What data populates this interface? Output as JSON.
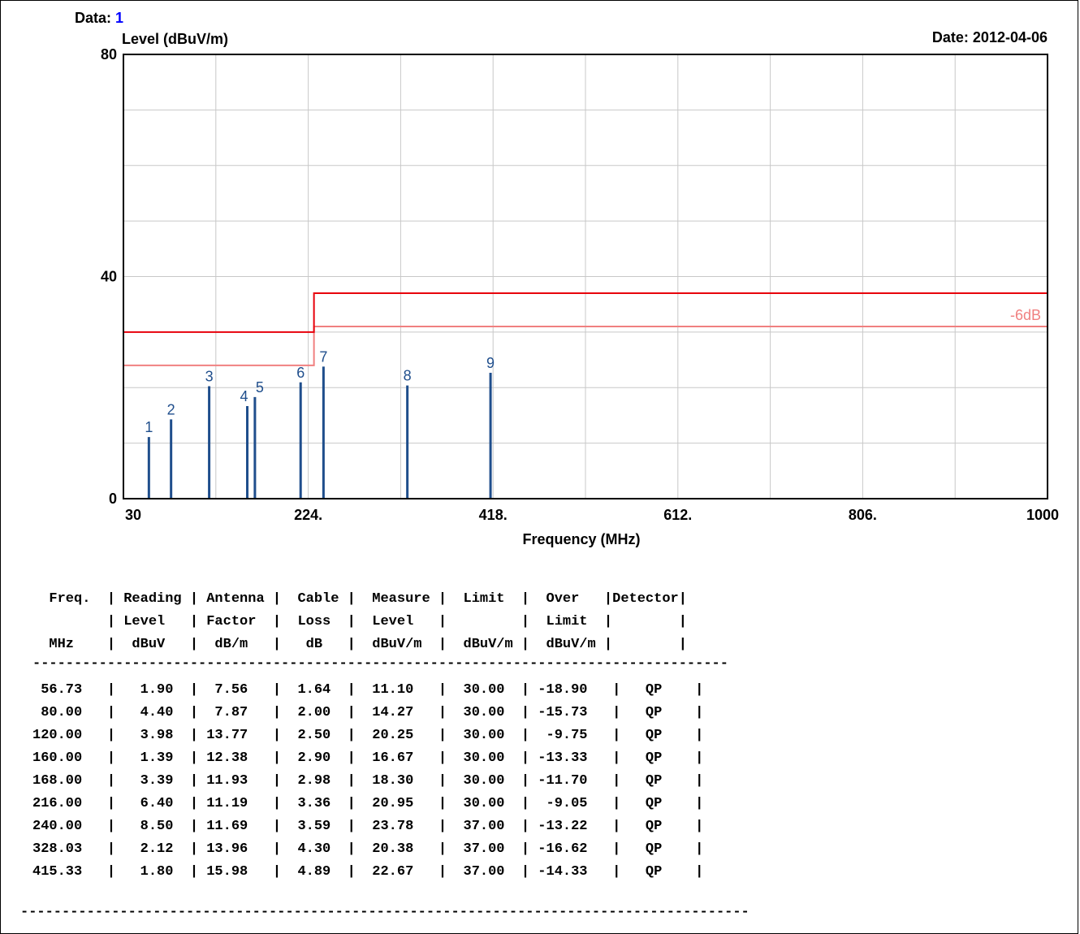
{
  "header": {
    "data_label": "Data:",
    "data_value": "1",
    "date": "Date: 2012-04-06"
  },
  "chart_data": {
    "type": "bar",
    "ylabel": "Level (dBuV/m)",
    "xlabel": "Frequency (MHz)",
    "xlim": [
      30,
      1000
    ],
    "ylim": [
      0,
      80
    ],
    "x_ticks": [
      {
        "value": 30,
        "label": "30"
      },
      {
        "value": 224,
        "label": "224."
      },
      {
        "value": 418,
        "label": "418."
      },
      {
        "value": 612,
        "label": "612."
      },
      {
        "value": 806,
        "label": "806."
      },
      {
        "value": 1000,
        "label": "1000"
      }
    ],
    "y_ticks": [
      {
        "value": 0,
        "label": "0"
      },
      {
        "value": 40,
        "label": "40"
      },
      {
        "value": 80,
        "label": "80"
      }
    ],
    "grid": true,
    "limit_line": {
      "color": "#e8000b",
      "segments": [
        {
          "x_start": 30,
          "x_end": 230,
          "y": 30
        },
        {
          "x_start": 230,
          "x_end": 1000,
          "y": 37
        }
      ]
    },
    "margin_line": {
      "label": "-6dB",
      "color": "#f08080",
      "segments": [
        {
          "x_start": 30,
          "x_end": 230,
          "y": 24
        },
        {
          "x_start": 230,
          "x_end": 1000,
          "y": 31
        }
      ]
    },
    "points": [
      {
        "label": "1",
        "x": 56.73,
        "y": 11.1
      },
      {
        "label": "2",
        "x": 80.0,
        "y": 14.27
      },
      {
        "label": "3",
        "x": 120.0,
        "y": 20.25
      },
      {
        "label": "4",
        "x": 160.0,
        "y": 16.67
      },
      {
        "label": "5",
        "x": 168.0,
        "y": 18.3
      },
      {
        "label": "6",
        "x": 216.0,
        "y": 20.95
      },
      {
        "label": "7",
        "x": 240.0,
        "y": 23.78
      },
      {
        "label": "8",
        "x": 328.03,
        "y": 20.38
      },
      {
        "label": "9",
        "x": 415.33,
        "y": 22.67
      }
    ],
    "bar_color": "#1f4e8c"
  },
  "table": {
    "header_lines": [
      "  Freq.  | Reading | Antenna |  Cable |  Measure |  Limit  |  Over   |Detector|",
      "         | Level   | Factor  |  Loss  |  Level   |         |  Limit  |        |",
      "  MHz    |  dBuV   |  dB/m   |   dB   |  dBuV/m  |  dBuV/m |  dBuV/m |        |"
    ],
    "separator": "------------------------------------------------------------------------------------",
    "rows": [
      " 56.73   |   1.90  |  7.56   |  1.64  |  11.10   |  30.00  | -18.90   |   QP    |",
      " 80.00   |   4.40  |  7.87   |  2.00  |  14.27   |  30.00  | -15.73   |   QP    |",
      "120.00   |   3.98  | 13.77   |  2.50  |  20.25   |  30.00  |  -9.75   |   QP    |",
      "160.00   |   1.39  | 12.38   |  2.90  |  16.67   |  30.00  | -13.33   |   QP    |",
      "168.00   |   3.39  | 11.93   |  2.98  |  18.30   |  30.00  | -11.70   |   QP    |",
      "216.00   |   6.40  | 11.19   |  3.36  |  20.95   |  30.00  |  -9.05   |   QP    |",
      "240.00   |   8.50  | 11.69   |  3.59  |  23.78   |  37.00  | -13.22   |   QP    |",
      "328.03   |   2.12  | 13.96   |  4.30  |  20.38   |  37.00  | -16.62   |   QP    |",
      "415.33   |   1.80  | 15.98   |  4.89  |  22.67   |  37.00  | -14.33   |   QP    |"
    ],
    "footer_separator": "----------------------------------------------------------------------------------------"
  }
}
